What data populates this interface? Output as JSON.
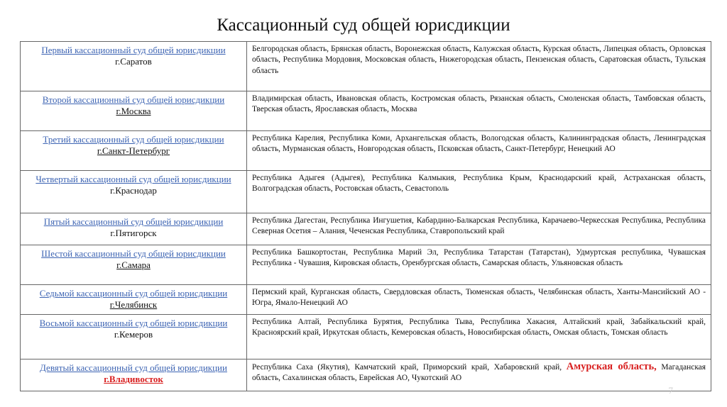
{
  "header": {
    "title": "Кассационный суд общей юрисдикции"
  },
  "table": {
    "rows": [
      {
        "court": "Первый кассационный суд общей юрисдикции",
        "city": "г.Саратов",
        "regions": "Белгородская область, Брянская область, Воронежская область, Калужская область, Курская область, Липецкая область, Орловская область, Республика Мордовия, Московская область, Нижегородская область, Пензенская область, Саратовская область, Тульская область"
      },
      {
        "court": "Второй кассационный суд общей юрисдикции",
        "city": "г.Москва",
        "regions": "Владимирская область, Ивановская область, Костромская область, Рязанская область, Смоленская область, Тамбовская область, Тверская область, Ярославская область, Москва"
      },
      {
        "court": "Третий кассационный суд общей юрисдикции",
        "city": "г.Санкт-Петербург",
        "regions": "Республика Карелия, Республика Коми, Архангельская область, Вологодская область, Калининградская область, Ленинградская область, Мурманская область, Новгородская область, Псковская область, Санкт-Петербург, Ненецкий АО"
      },
      {
        "court": "Четвертый кассационный суд общей юрисдикции",
        "city": "г.Краснодар",
        "regions": "Республика Адыгея (Адыгея), Республика Калмыкия, Республика Крым, Краснодарский край, Астраханская область, Волгоградская область, Ростовская область, Севастополь"
      },
      {
        "court": "Пятый кассационный суд общей юрисдикции",
        "city": "г.Пятигорск",
        "regions": "Республика Дагестан, Республика Ингушетия, Кабардино-Балкарская Республика, Карачаево-Черкесская Республика, Республика Северная Осетия – Алания, Чеченская Республика, Ставропольский край"
      },
      {
        "court": "Шестой кассационный суд общей юрисдикции",
        "city": "г.Самара",
        "regions": "Республика Башкортостан, Республика Марий Эл, Республика Татарстан (Татарстан), Удмуртская республика, Чувашская Республика - Чувашия, Кировская область, Оренбургская область, Самарская область, Ульяновская область"
      },
      {
        "court": "Седьмой кассационный суд общей юрисдикции",
        "city": "г.Челябинск",
        "regions": "Пермский край, Курганская область, Свердловская область, Тюменская область, Челябинская область, Ханты-Мансийский АО - Югра, Ямало-Ненецкий АО"
      },
      {
        "court": "Восьмой кассационный суд общей юрисдикции",
        "city": "г.Кемеров",
        "regions": "Республика Алтай, Республика Бурятия, Республика Тыва, Республика Хакасия, Алтайский край, Забайкальский край, Красноярский край, Иркутская область, Кемеровская область, Новосибирская область, Омская область, Томская область"
      },
      {
        "court": "Девятый кассационный суд общей юрисдикции",
        "city": "г.Владивосток",
        "regions": [
          "Республика Саха (Якутия), Камчатский край, Приморский край, Хабаровский край,",
          "Амурская область,",
          "Магаданская область, Сахалинская область, Еврейская АО, Чукотский АО"
        ]
      }
    ]
  },
  "page_number": "7"
}
